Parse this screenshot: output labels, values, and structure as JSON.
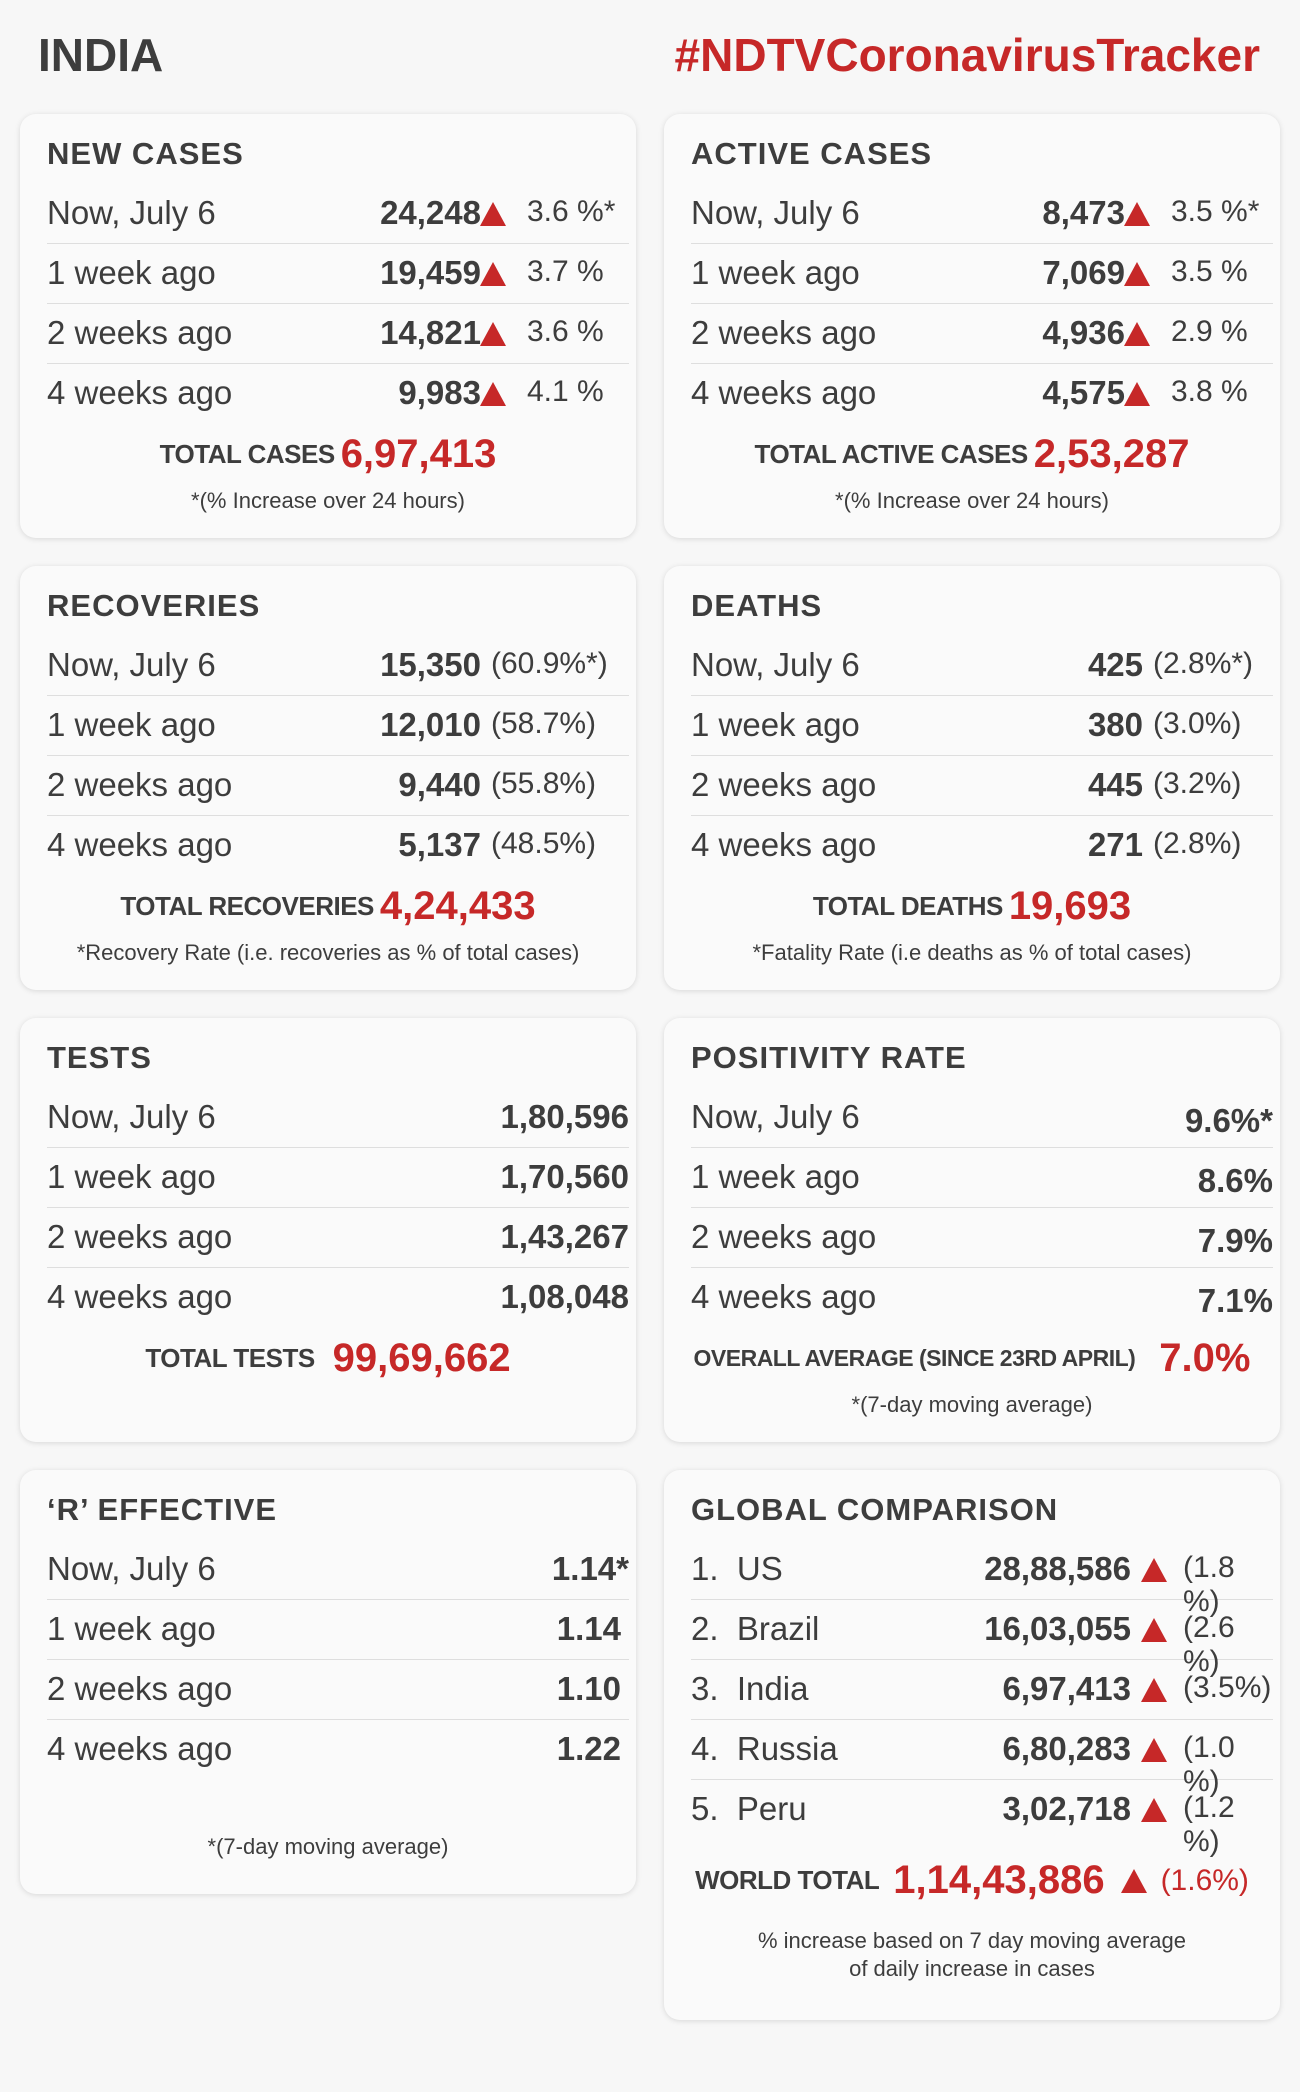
{
  "header": {
    "country": "INDIA",
    "hashtag": "#NDTVCoronavirusTracker"
  },
  "new_cases": {
    "title": "NEW CASES",
    "rows": [
      {
        "label": "Now, July 6",
        "value": "24,248",
        "pct": "3.6 %*"
      },
      {
        "label": "1 week ago",
        "value": "19,459",
        "pct": "3.7 %"
      },
      {
        "label": "2 weeks ago",
        "value": "14,821",
        "pct": "3.6 %"
      },
      {
        "label": "4 weeks ago",
        "value": "9,983",
        "pct": "4.1 %"
      }
    ],
    "total_label": "TOTAL CASES",
    "total_value": "6,97,413",
    "note": "*(% Increase over 24 hours)"
  },
  "active_cases": {
    "title": "ACTIVE CASES",
    "rows": [
      {
        "label": "Now, July 6",
        "value": "8,473",
        "pct": "3.5 %*"
      },
      {
        "label": "1 week ago",
        "value": "7,069",
        "pct": "3.5 %"
      },
      {
        "label": "2 weeks ago",
        "value": "4,936",
        "pct": "2.9 %"
      },
      {
        "label": "4 weeks ago",
        "value": "4,575",
        "pct": "3.8 %"
      }
    ],
    "total_label": "TOTAL ACTIVE CASES",
    "total_value": "2,53,287",
    "note": "*(% Increase over 24 hours)"
  },
  "recoveries": {
    "title": "RECOVERIES",
    "rows": [
      {
        "label": "Now, July 6",
        "value": "15,350",
        "pct": "(60.9%*)"
      },
      {
        "label": "1 week ago",
        "value": "12,010",
        "pct": "(58.7%)"
      },
      {
        "label": "2 weeks ago",
        "value": "9,440",
        "pct": "(55.8%)"
      },
      {
        "label": "4 weeks ago",
        "value": "5,137",
        "pct": "(48.5%)"
      }
    ],
    "total_label": "TOTAL RECOVERIES",
    "total_value": "4,24,433",
    "note": "*Recovery Rate (i.e. recoveries as % of total cases)"
  },
  "deaths": {
    "title": "DEATHS",
    "rows": [
      {
        "label": "Now, July 6",
        "value": "425",
        "pct": "(2.8%*)"
      },
      {
        "label": "1 week ago",
        "value": "380",
        "pct": "(3.0%)"
      },
      {
        "label": "2 weeks ago",
        "value": "445",
        "pct": "(3.2%)"
      },
      {
        "label": "4 weeks ago",
        "value": "271",
        "pct": "(2.8%)"
      }
    ],
    "total_label": "TOTAL DEATHS",
    "total_value": "19,693",
    "note": "*Fatality Rate (i.e deaths as % of total cases)"
  },
  "tests": {
    "title": "TESTS",
    "rows": [
      {
        "label": "Now, July 6",
        "value": "1,80,596"
      },
      {
        "label": "1 week ago",
        "value": "1,70,560"
      },
      {
        "label": "2 weeks ago",
        "value": "1,43,267"
      },
      {
        "label": "4 weeks ago",
        "value": "1,08,048"
      }
    ],
    "total_label": "TOTAL TESTS",
    "total_value": "99,69,662"
  },
  "positivity": {
    "title": "POSITIVITY RATE",
    "rows": [
      {
        "label": "Now, July 6",
        "value": "9.6%*"
      },
      {
        "label": "1 week ago",
        "value": "8.6%"
      },
      {
        "label": "2 weeks ago",
        "value": "7.9%"
      },
      {
        "label": "4 weeks ago",
        "value": "7.1%"
      }
    ],
    "total_label": "OVERALL AVERAGE (SINCE 23RD APRIL)",
    "total_value": "7.0%",
    "note": "*(7-day moving average)"
  },
  "r_effective": {
    "title": "‘R’ EFFECTIVE",
    "rows": [
      {
        "label": "Now, July 6",
        "value": "1.14*"
      },
      {
        "label": "1 week ago",
        "value": "1.14"
      },
      {
        "label": "2 weeks ago",
        "value": "1.10"
      },
      {
        "label": "4 weeks ago",
        "value": "1.22"
      }
    ],
    "note": "*(7-day moving average)"
  },
  "global": {
    "title": "GLOBAL COMPARISON",
    "rows": [
      {
        "label": "1.  US",
        "value": "28,88,586",
        "pct": "(1.8 %)"
      },
      {
        "label": "2.  Brazil",
        "value": "16,03,055",
        "pct": "(2.6 %)"
      },
      {
        "label": "3.  India",
        "value": "6,97,413",
        "pct": "(3.5%)"
      },
      {
        "label": "4.  Russia",
        "value": "6,80,283",
        "pct": "(1.0 %)"
      },
      {
        "label": "5.  Peru",
        "value": "3,02,718",
        "pct": "(1.2 %)"
      }
    ],
    "total_label": "WORLD TOTAL",
    "total_value": "1,14,43,886",
    "total_pct": "(1.6%)",
    "note_line1": "% increase based on 7 day moving average",
    "note_line2": "of daily increase in cases"
  },
  "colors": {
    "accent": "#c62828",
    "text": "#3d3d3d",
    "background": "#f7f7f7",
    "card": "#fafafa"
  },
  "icons": {
    "trend": "red-up-triangle-icon"
  }
}
